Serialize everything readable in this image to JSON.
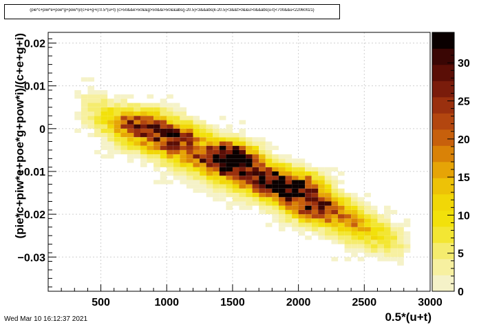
{
  "title": "(pie*c+piw*e+poe*g+pow*i)/(c+e+g+i):0.5*(u+t) {c>50&&e>50&&g>50&&i>50&&abs(j-20.5)<3&&abs(k-20.5)<3&&t>0&&u>0&&abs(u-t)<700&&u<22060021}",
  "timestamp": "Wed Mar 10 16:12:37 2021",
  "chart_data": {
    "type": "heatmap",
    "title": "(pie*c+piw*e+poe*g+pow*i)/(c+e+g+i):0.5*(u+t) {c>50&&e>50&&g>50&&i>50&&abs(j-20.5)<3&&abs(k-20.5)<3&&t>0&&u>0&&abs(u-t)<700&&u<22060021}",
    "xlabel": "0.5*(u+t)",
    "ylabel": "(pie*c+piw*e+poe*g+pow*i)/(c+e+g+i)",
    "xlim": [
      100,
      3000
    ],
    "ylim": [
      -0.038,
      0.0225
    ],
    "zlim": [
      0,
      34
    ],
    "x_ticks": [
      500,
      1000,
      1500,
      2000,
      2500,
      3000
    ],
    "x_tick_labels": [
      "500",
      "1000",
      "1500",
      "2000",
      "2500",
      "3000"
    ],
    "y_ticks": [
      0.02,
      0.01,
      0,
      -0.01,
      -0.02,
      -0.03
    ],
    "y_tick_labels": [
      "0.02",
      "0.01",
      "0",
      "−0.01",
      "−0.02",
      "−0.03"
    ],
    "z_ticks": [
      0,
      5,
      10,
      15,
      20,
      25,
      30
    ],
    "z_tick_labels": [
      "0",
      "5",
      "10",
      "15",
      "20",
      "25",
      "30"
    ],
    "grid": true,
    "colormap": [
      "#f5f2c8",
      "#f7f0a0",
      "#f5ec6e",
      "#f3e633",
      "#f2e10b",
      "#f1d707",
      "#edc207",
      "#e6a406",
      "#d98207",
      "#c7600c",
      "#b3460f",
      "#9a300e",
      "#7a1c0b",
      "#5a0e06",
      "#3a0604",
      "#0a0000"
    ],
    "bin_width_x": 50,
    "bin_height_y": 0.001,
    "trend": {
      "start": [
        600,
        0.0015
      ],
      "end": [
        2600,
        -0.0245
      ],
      "spread": 0.0042
    },
    "peak_counts": [
      {
        "x": 1450,
        "y": -0.0055,
        "z": 34
      },
      {
        "x": 2000,
        "y": -0.0135,
        "z": 33
      },
      {
        "x": 1550,
        "y": -0.008,
        "z": 31
      },
      {
        "x": 1100,
        "y": -0.0015,
        "z": 28
      },
      {
        "x": 850,
        "y": 0.0015,
        "z": 26
      },
      {
        "x": 1800,
        "y": -0.0115,
        "z": 28
      },
      {
        "x": 2150,
        "y": -0.0185,
        "z": 25
      }
    ]
  }
}
